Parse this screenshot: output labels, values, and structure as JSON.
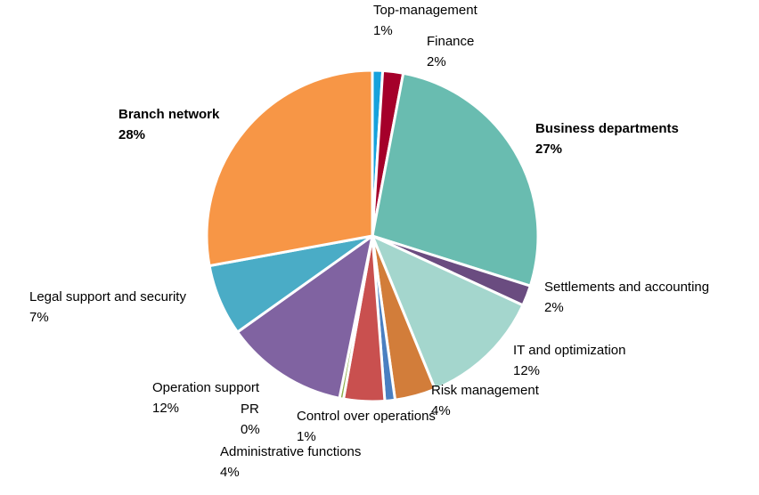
{
  "chart_data": {
    "type": "pie",
    "categories": [
      "Top-management",
      "Finance",
      "Business departments",
      "Settlements and accounting",
      "IT and optimization",
      "Risk management",
      "Control over operations",
      "Administrative functions",
      "PR",
      "Operation support",
      "Legal support and security",
      "Branch network"
    ],
    "values": [
      1,
      2,
      27,
      2,
      12,
      4,
      1,
      4,
      0.4,
      12,
      7,
      28
    ],
    "value_labels": [
      "1%",
      "2%",
      "27%",
      "2%",
      "12%",
      "4%",
      "1%",
      "4%",
      "0%",
      "12%",
      "7%",
      "28%"
    ],
    "colors": [
      "#17a2dc",
      "#a5002a",
      "#69bcb0",
      "#6a4c80",
      "#a4d6cd",
      "#d27d3a",
      "#4a7fc1",
      "#c9504f",
      "#8fb04c",
      "#8063a1",
      "#4aacc6",
      "#f79646"
    ]
  }
}
